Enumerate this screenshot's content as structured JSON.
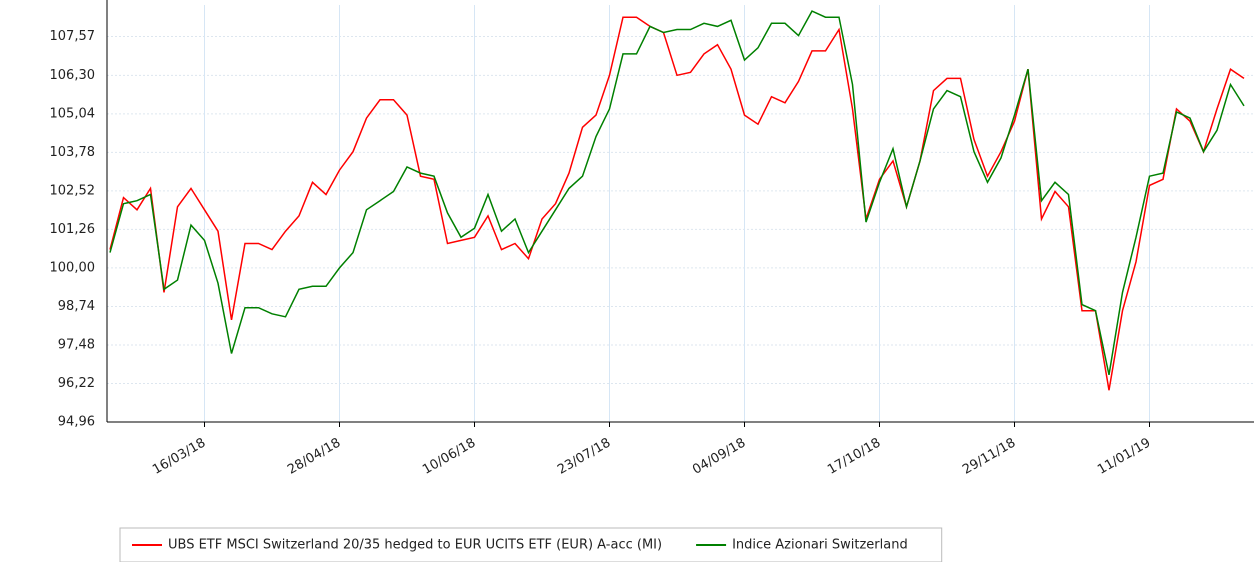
{
  "chart_data": {
    "type": "line",
    "categories": [
      null,
      null,
      null,
      null,
      null,
      null,
      null,
      "16/03/18",
      null,
      null,
      null,
      null,
      null,
      null,
      null,
      null,
      null,
      "28/04/18",
      null,
      null,
      null,
      null,
      null,
      null,
      null,
      null,
      null,
      "10/06/18",
      null,
      null,
      null,
      null,
      null,
      null,
      null,
      null,
      null,
      "23/07/18",
      null,
      null,
      null,
      null,
      null,
      null,
      null,
      null,
      null,
      "04/09/18",
      null,
      null,
      null,
      null,
      null,
      null,
      null,
      null,
      null,
      "17/10/18",
      null,
      null,
      null,
      null,
      null,
      null,
      null,
      null,
      null,
      "29/11/18",
      null,
      null,
      null,
      null,
      null,
      null,
      null,
      null,
      null,
      "11/01/19",
      null,
      null,
      null,
      null,
      null,
      null,
      null
    ],
    "series": [
      {
        "name": "UBS ETF MSCI Switzerland 20/35 hedged to EUR UCITS ETF (EUR) A-acc (MI)",
        "color": "#ff0000",
        "values": [
          100.6,
          102.3,
          101.9,
          102.6,
          99.2,
          102.0,
          102.6,
          101.9,
          101.2,
          98.3,
          100.8,
          100.8,
          100.6,
          101.2,
          101.7,
          102.8,
          102.4,
          103.2,
          103.8,
          104.9,
          105.5,
          105.5,
          105.0,
          103.0,
          102.9,
          100.8,
          100.9,
          101.0,
          101.7,
          100.6,
          100.8,
          100.3,
          101.6,
          102.1,
          103.1,
          104.6,
          105.0,
          106.3,
          108.2,
          108.2,
          107.9,
          107.7,
          106.3,
          106.4,
          107.0,
          107.3,
          106.5,
          105.0,
          104.7,
          105.6,
          105.4,
          106.1,
          107.1,
          107.1,
          107.8,
          105.2,
          101.6,
          102.9,
          103.5,
          102.0,
          103.5,
          105.8,
          106.2,
          106.2,
          104.2,
          103.0,
          103.8,
          104.8,
          106.5,
          101.6,
          102.5,
          102.0,
          98.6,
          98.6,
          96.0,
          98.6,
          100.2,
          102.7,
          102.9,
          105.2,
          104.8,
          103.8,
          105.2,
          106.5,
          106.2
        ]
      },
      {
        "name": "Indice Azionari Switzerland",
        "color": "#008000",
        "values": [
          100.5,
          102.1,
          102.2,
          102.4,
          99.3,
          99.6,
          101.4,
          100.9,
          99.5,
          97.2,
          98.7,
          98.7,
          98.5,
          98.4,
          99.3,
          99.4,
          99.4,
          100.0,
          100.5,
          101.9,
          102.2,
          102.5,
          103.3,
          103.1,
          103.0,
          101.8,
          101.0,
          101.3,
          102.4,
          101.2,
          101.6,
          100.5,
          101.2,
          101.9,
          102.6,
          103.0,
          104.3,
          105.2,
          107.0,
          107.0,
          107.9,
          107.7,
          107.8,
          107.8,
          108.0,
          107.9,
          108.1,
          106.8,
          107.2,
          108.0,
          108.0,
          107.6,
          108.4,
          108.2,
          108.2,
          106.0,
          101.5,
          102.8,
          103.9,
          102.0,
          103.5,
          105.2,
          105.8,
          105.6,
          103.8,
          102.8,
          103.6,
          105.0,
          106.5,
          102.2,
          102.8,
          102.4,
          98.8,
          98.6,
          96.5,
          99.2,
          101.0,
          103.0,
          103.1,
          105.1,
          104.9,
          103.8,
          104.5,
          106.0,
          105.3
        ]
      }
    ],
    "ylim": [
      94.96,
      108.6
    ],
    "yticks": [
      {
        "value": 94.96,
        "label": "94,96"
      },
      {
        "value": 96.22,
        "label": "96,22"
      },
      {
        "value": 97.48,
        "label": "97,48"
      },
      {
        "value": 98.74,
        "label": "98,74"
      },
      {
        "value": 100.0,
        "label": "100,00"
      },
      {
        "value": 101.26,
        "label": "101,26"
      },
      {
        "value": 102.52,
        "label": "102,52"
      },
      {
        "value": 103.78,
        "label": "103,78"
      },
      {
        "value": 105.04,
        "label": "105,04"
      },
      {
        "value": 106.3,
        "label": "106,30"
      },
      {
        "value": 107.57,
        "label": "107,57"
      }
    ],
    "grid": true,
    "legend": "bottom"
  }
}
